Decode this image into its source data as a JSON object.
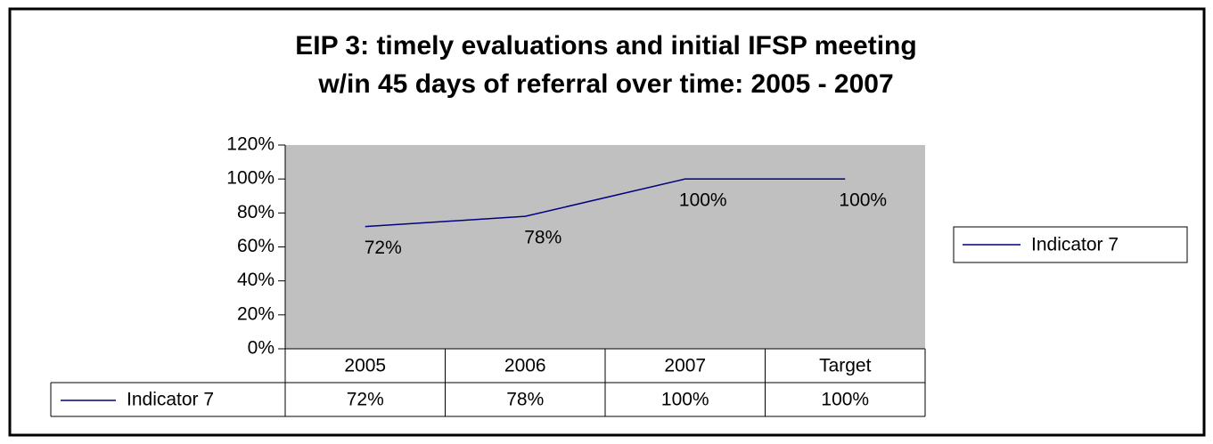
{
  "chart_data": {
    "type": "line",
    "title": [
      "EIP 3:  timely evaluations and initial IFSP meeting",
      "w/in 45 days of referral over time: 2005 - 2007"
    ],
    "categories": [
      "2005",
      "2006",
      "2007",
      "Target"
    ],
    "series": [
      {
        "name": "Indicator 7",
        "color": "#000080",
        "values": [
          72,
          78,
          100,
          100
        ],
        "value_labels": [
          "72%",
          "78%",
          "100%",
          "100%"
        ]
      }
    ],
    "ylim": [
      0,
      120
    ],
    "yticks": [
      {
        "value": 0,
        "label": "0%"
      },
      {
        "value": 20,
        "label": "20%"
      },
      {
        "value": 40,
        "label": "40%"
      },
      {
        "value": 60,
        "label": "60%"
      },
      {
        "value": 80,
        "label": "80%"
      },
      {
        "value": 100,
        "label": "100%"
      },
      {
        "value": 120,
        "label": "120%"
      }
    ],
    "grid": false,
    "legend": "right",
    "plot_background": "#c0c0c0"
  }
}
